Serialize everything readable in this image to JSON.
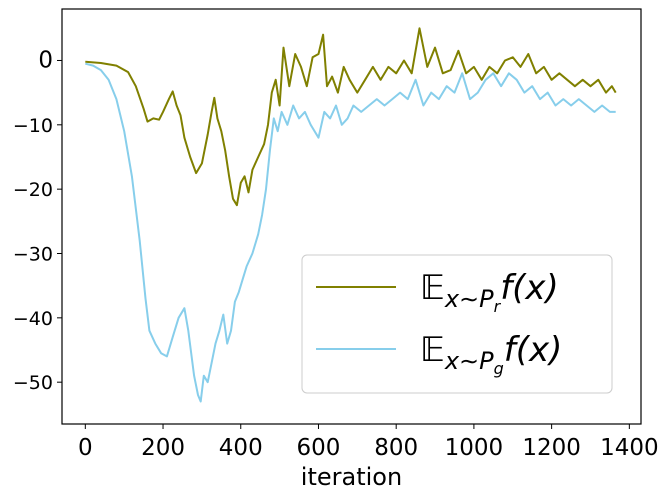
{
  "chart_data": {
    "type": "line",
    "title": "",
    "xlabel": "iteration",
    "ylabel": "",
    "xlim": [
      -60,
      1430
    ],
    "ylim": [
      -56.5,
      8
    ],
    "xticks": [
      0,
      200,
      400,
      600,
      800,
      1000,
      1200,
      1400
    ],
    "yticks": [
      0,
      -10,
      -20,
      -30,
      -40,
      -50
    ],
    "xtick_labels": [
      "0",
      "200",
      "400",
      "600",
      "800",
      "1000",
      "1200",
      "1400"
    ],
    "ytick_labels": [
      "0",
      "−10",
      "−20",
      "−30",
      "−40",
      "−50"
    ],
    "grid": false,
    "legend_position": "lower-right",
    "series": [
      {
        "name": "𝔼 x∼P_r f(x)",
        "color": "#808000",
        "points": [
          [
            0,
            -0.2
          ],
          [
            40,
            -0.4
          ],
          [
            80,
            -0.8
          ],
          [
            110,
            -1.8
          ],
          [
            130,
            -4
          ],
          [
            150,
            -7.5
          ],
          [
            160,
            -9.5
          ],
          [
            175,
            -9
          ],
          [
            190,
            -9.2
          ],
          [
            200,
            -8
          ],
          [
            215,
            -6
          ],
          [
            225,
            -4.8
          ],
          [
            235,
            -7
          ],
          [
            245,
            -8.5
          ],
          [
            255,
            -12
          ],
          [
            270,
            -15
          ],
          [
            285,
            -17.5
          ],
          [
            300,
            -16
          ],
          [
            315,
            -11.5
          ],
          [
            325,
            -8
          ],
          [
            332,
            -5.8
          ],
          [
            340,
            -9
          ],
          [
            350,
            -11
          ],
          [
            360,
            -14
          ],
          [
            370,
            -18
          ],
          [
            380,
            -21.5
          ],
          [
            390,
            -22.5
          ],
          [
            400,
            -19
          ],
          [
            410,
            -18
          ],
          [
            420,
            -20.5
          ],
          [
            430,
            -17
          ],
          [
            445,
            -15
          ],
          [
            460,
            -13
          ],
          [
            470,
            -10
          ],
          [
            480,
            -5
          ],
          [
            490,
            -3
          ],
          [
            500,
            -7
          ],
          [
            510,
            2
          ],
          [
            525,
            -4
          ],
          [
            540,
            1
          ],
          [
            555,
            -1
          ],
          [
            570,
            -4
          ],
          [
            585,
            0.5
          ],
          [
            600,
            1
          ],
          [
            612,
            4
          ],
          [
            622,
            -4
          ],
          [
            635,
            -2.5
          ],
          [
            650,
            -5
          ],
          [
            665,
            -1
          ],
          [
            680,
            -3
          ],
          [
            700,
            -5
          ],
          [
            720,
            -3
          ],
          [
            740,
            -1
          ],
          [
            760,
            -3
          ],
          [
            780,
            -1
          ],
          [
            800,
            -2
          ],
          [
            820,
            0
          ],
          [
            840,
            -2
          ],
          [
            860,
            5
          ],
          [
            880,
            -1
          ],
          [
            900,
            2
          ],
          [
            920,
            -2
          ],
          [
            940,
            -1.5
          ],
          [
            960,
            1.5
          ],
          [
            980,
            -2
          ],
          [
            1000,
            -1
          ],
          [
            1020,
            -3
          ],
          [
            1040,
            -1
          ],
          [
            1060,
            -2
          ],
          [
            1080,
            0
          ],
          [
            1100,
            0.5
          ],
          [
            1120,
            -1
          ],
          [
            1140,
            1
          ],
          [
            1160,
            -2
          ],
          [
            1180,
            -1
          ],
          [
            1200,
            -3
          ],
          [
            1220,
            -2
          ],
          [
            1240,
            -3
          ],
          [
            1260,
            -4
          ],
          [
            1280,
            -3
          ],
          [
            1300,
            -4
          ],
          [
            1320,
            -3
          ],
          [
            1340,
            -5
          ],
          [
            1355,
            -4
          ],
          [
            1365,
            -5
          ]
        ]
      },
      {
        "name": "𝔼 x∼P_g f(x)",
        "color": "#87ceeb",
        "points": [
          [
            0,
            -0.5
          ],
          [
            20,
            -0.8
          ],
          [
            40,
            -1.5
          ],
          [
            60,
            -3
          ],
          [
            80,
            -6
          ],
          [
            100,
            -11
          ],
          [
            120,
            -18
          ],
          [
            140,
            -28
          ],
          [
            155,
            -37
          ],
          [
            165,
            -42
          ],
          [
            180,
            -44
          ],
          [
            195,
            -45.5
          ],
          [
            210,
            -46
          ],
          [
            225,
            -43
          ],
          [
            240,
            -40
          ],
          [
            255,
            -38.5
          ],
          [
            265,
            -42
          ],
          [
            280,
            -49
          ],
          [
            290,
            -52
          ],
          [
            297,
            -53
          ],
          [
            305,
            -49
          ],
          [
            315,
            -50
          ],
          [
            325,
            -47
          ],
          [
            335,
            -44
          ],
          [
            345,
            -42
          ],
          [
            355,
            -39.5
          ],
          [
            365,
            -44
          ],
          [
            375,
            -42
          ],
          [
            385,
            -37.5
          ],
          [
            395,
            -36
          ],
          [
            405,
            -34
          ],
          [
            415,
            -32
          ],
          [
            430,
            -30
          ],
          [
            445,
            -27
          ],
          [
            455,
            -24
          ],
          [
            465,
            -20
          ],
          [
            475,
            -14
          ],
          [
            485,
            -9
          ],
          [
            495,
            -11
          ],
          [
            505,
            -8
          ],
          [
            520,
            -10
          ],
          [
            535,
            -7
          ],
          [
            550,
            -9
          ],
          [
            565,
            -8
          ],
          [
            580,
            -10
          ],
          [
            600,
            -12
          ],
          [
            615,
            -8
          ],
          [
            630,
            -9
          ],
          [
            645,
            -7
          ],
          [
            660,
            -10
          ],
          [
            675,
            -9
          ],
          [
            690,
            -7
          ],
          [
            710,
            -8
          ],
          [
            730,
            -7
          ],
          [
            750,
            -6
          ],
          [
            770,
            -7
          ],
          [
            790,
            -6
          ],
          [
            810,
            -5
          ],
          [
            830,
            -6
          ],
          [
            850,
            -3
          ],
          [
            870,
            -7
          ],
          [
            890,
            -5
          ],
          [
            910,
            -6
          ],
          [
            930,
            -4
          ],
          [
            950,
            -5
          ],
          [
            970,
            -2
          ],
          [
            990,
            -6
          ],
          [
            1010,
            -5
          ],
          [
            1030,
            -3
          ],
          [
            1050,
            -2
          ],
          [
            1070,
            -4
          ],
          [
            1090,
            -2
          ],
          [
            1110,
            -3
          ],
          [
            1130,
            -5
          ],
          [
            1150,
            -4
          ],
          [
            1170,
            -6
          ],
          [
            1190,
            -5
          ],
          [
            1210,
            -7
          ],
          [
            1230,
            -6
          ],
          [
            1250,
            -7
          ],
          [
            1270,
            -6
          ],
          [
            1290,
            -7
          ],
          [
            1310,
            -8
          ],
          [
            1330,
            -7
          ],
          [
            1350,
            -8
          ],
          [
            1365,
            -8
          ]
        ]
      }
    ]
  }
}
